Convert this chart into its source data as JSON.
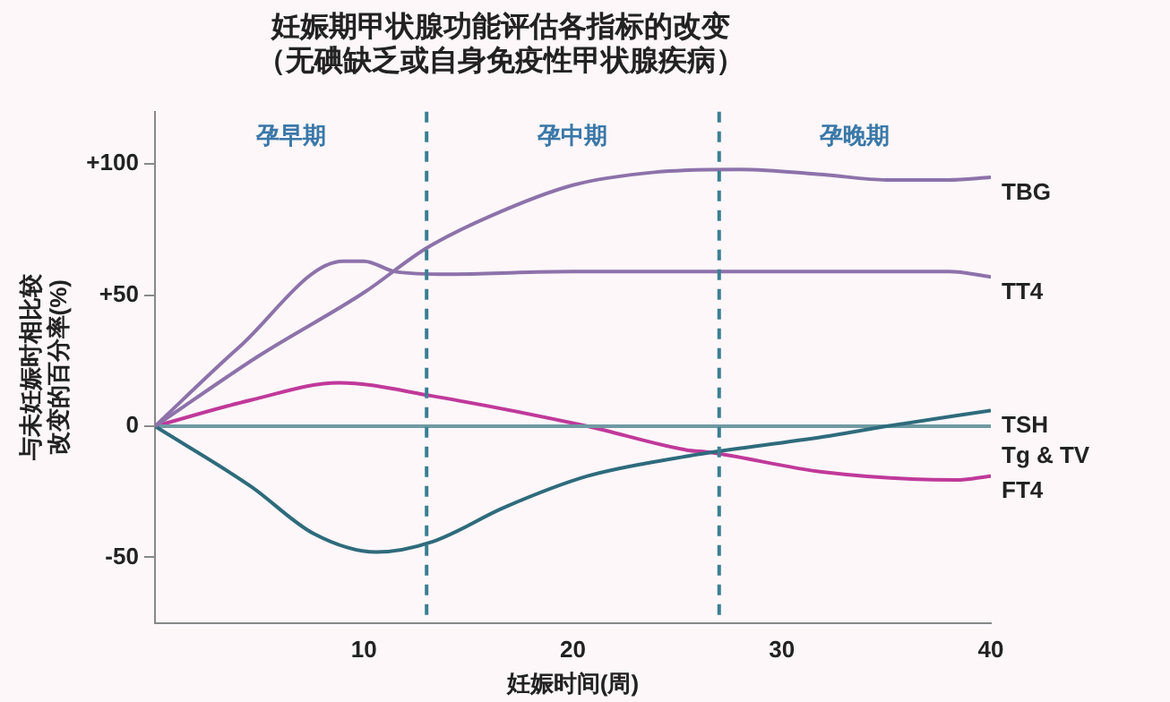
{
  "chart_data": {
    "type": "line",
    "title": "妊娠期甲状腺功能评估各指标的改变",
    "subtitle": "（无碘缺乏或自身免疫性甲状腺疾病）",
    "xlabel": "妊娠时间(周)",
    "ylabel": "与未妊娠时相比较改变的百分率(%)",
    "xlim": [
      0,
      40
    ],
    "xticks": [
      10,
      20,
      30,
      40
    ],
    "ylim": [
      -75,
      120
    ],
    "yticks": [
      {
        "value": 100,
        "label": "+100"
      },
      {
        "value": 50,
        "label": "+50"
      },
      0,
      -50
    ],
    "grid": false,
    "legend": false,
    "marker": "none",
    "line_style": "solid",
    "series": [
      {
        "name": "TBG",
        "color": "#8d72aa",
        "x": [
          0,
          5,
          10,
          13,
          16,
          20,
          24,
          28,
          32,
          35,
          38,
          40
        ],
        "values": [
          0,
          27,
          51,
          68,
          80,
          92,
          97,
          98,
          96,
          94,
          94,
          95
        ]
      },
      {
        "name": "TT4",
        "color": "#8d72aa",
        "x": [
          0,
          4,
          9,
          10,
          11.5,
          14,
          20,
          30,
          38,
          40
        ],
        "values": [
          0,
          30,
          63,
          63,
          59,
          58,
          59,
          59,
          59,
          57
        ]
      },
      {
        "name": "TSH",
        "color": "#2e6b7c",
        "x": [
          0,
          4.6,
          7.6,
          10.6,
          13.3,
          16.7,
          20.7,
          25.4,
          26.6,
          32,
          35,
          40
        ],
        "values": [
          0,
          -23,
          -41,
          -48,
          -44,
          -31,
          -19,
          -11.5,
          -10,
          -4,
          0,
          6
        ]
      },
      {
        "name": "Tg & TV",
        "color": "#6f9aa2",
        "x": [
          0,
          40
        ],
        "values": [
          0,
          0
        ]
      },
      {
        "name": "FT4",
        "color": "#c0399a",
        "x": [
          0,
          4.6,
          8.8,
          13.3,
          20.7,
          25.4,
          26.6,
          32,
          38.3,
          40
        ],
        "values": [
          0,
          10,
          16.6,
          11.5,
          0,
          -9,
          -10,
          -17.5,
          -20.5,
          -19
        ]
      }
    ],
    "ref_lines": [
      {
        "axis": "x",
        "value": 13,
        "color": "#3a7f92",
        "line_style": "dashed"
      },
      {
        "axis": "x",
        "value": 27,
        "color": "#3a7f92",
        "line_style": "dashed"
      }
    ],
    "annotations": [
      "孕早期",
      "孕中期",
      "孕晚期"
    ]
  }
}
